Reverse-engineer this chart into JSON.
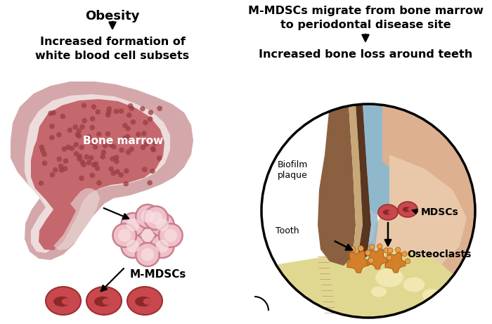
{
  "left_title": "Obesity",
  "left_subtitle": "Increased formation of\nwhite blood cell subsets",
  "right_title": "M-MDSCs migrate from bone marrow\nto periodontal disease site",
  "right_subtitle": "Increased bone loss around teeth",
  "bone_marrow_label": "Bone marrow",
  "m_mdscs_label": "M-MDSCs",
  "mdscs_label": "MDSCs",
  "osteoclasts_label": "Osteoclasts",
  "biofilm_label": "Biofilm\nplaque",
  "tooth_label": "Tooth",
  "bg_color": "#ffffff",
  "bone_cortex_color": "#d4a8aa",
  "bone_marrow_fill": "#c4686e",
  "bone_marrow_dot": "#9b3d42",
  "bone_light_bg": "#eddcdc",
  "cell_cluster_pink": "#f0c0c8",
  "cell_cluster_ring": "#c88090",
  "cell_cluster_center": "#f8e0e4",
  "small_cell_fill": "#c8484e",
  "small_cell_border": "#9b3030",
  "nucleus_dark": "#8b2828",
  "circle_bg": "#ffffff",
  "gum_peach": "#ddb090",
  "gum_light": "#e8c8a8",
  "tooth_brown": "#8b6040",
  "tooth_light": "#e0d0b0",
  "biofilm_blue": "#90b8cc",
  "bone_jaw_yellow": "#e0d890",
  "bone_jaw_light": "#f0e8b0",
  "osteoclast_orange": "#d4802a",
  "osteoclast_light": "#e8a050",
  "arrow_black": "#111111"
}
